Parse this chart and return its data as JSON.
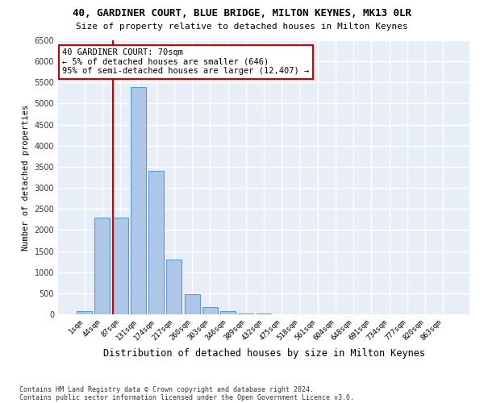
{
  "title1": "40, GARDINER COURT, BLUE BRIDGE, MILTON KEYNES, MK13 0LR",
  "title2": "Size of property relative to detached houses in Milton Keynes",
  "xlabel": "Distribution of detached houses by size in Milton Keynes",
  "ylabel": "Number of detached properties",
  "footnote1": "Contains HM Land Registry data © Crown copyright and database right 2024.",
  "footnote2": "Contains public sector information licensed under the Open Government Licence v3.0.",
  "bar_labels": [
    "1sqm",
    "44sqm",
    "87sqm",
    "131sqm",
    "174sqm",
    "217sqm",
    "260sqm",
    "303sqm",
    "346sqm",
    "389sqm",
    "432sqm",
    "475sqm",
    "518sqm",
    "561sqm",
    "604sqm",
    "648sqm",
    "691sqm",
    "734sqm",
    "777sqm",
    "820sqm",
    "863sqm"
  ],
  "bar_heights": [
    75,
    2300,
    2300,
    5400,
    3400,
    1300,
    475,
    175,
    75,
    20,
    10,
    5,
    3,
    2,
    1,
    0,
    0,
    0,
    0,
    0,
    0
  ],
  "bar_color": "#aec6e8",
  "bar_edge_color": "#5b9bd5",
  "background_color": "#e8eef8",
  "grid_color": "#ffffff",
  "annotation_text": "40 GARDINER COURT: 70sqm\n← 5% of detached houses are smaller (646)\n95% of semi-detached houses are larger (12,407) →",
  "annotation_box_color": "#ffffff",
  "annotation_edge_color": "#cc0000",
  "redline_color": "#cc0000",
  "ylim": [
    0,
    6500
  ],
  "yticks": [
    0,
    500,
    1000,
    1500,
    2000,
    2500,
    3000,
    3500,
    4000,
    4500,
    5000,
    5500,
    6000,
    6500
  ]
}
